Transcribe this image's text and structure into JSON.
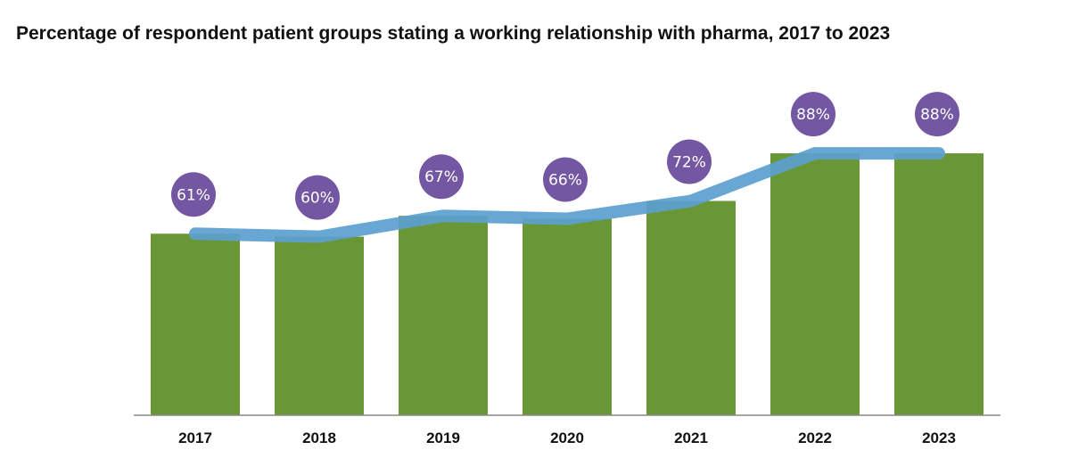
{
  "chart_data": {
    "type": "bar",
    "title": "Percentage of respondent patient groups stating a working relationship with pharma, 2017 to 2023",
    "categories": [
      "2017",
      "2018",
      "2019",
      "2020",
      "2021",
      "2022",
      "2023"
    ],
    "values": [
      61,
      60,
      67,
      66,
      72,
      88,
      88
    ],
    "data_labels": [
      "61%",
      "60%",
      "67%",
      "66%",
      "72%",
      "88%",
      "88%"
    ],
    "xlabel": "",
    "ylabel": "",
    "ylim": [
      0,
      100
    ],
    "grid": false,
    "legend": "none",
    "overlay_line": true,
    "colors": {
      "bar": "#6a9735",
      "line": "#5b9fcf",
      "badge": "#7457a3",
      "axis": "#888888"
    }
  }
}
